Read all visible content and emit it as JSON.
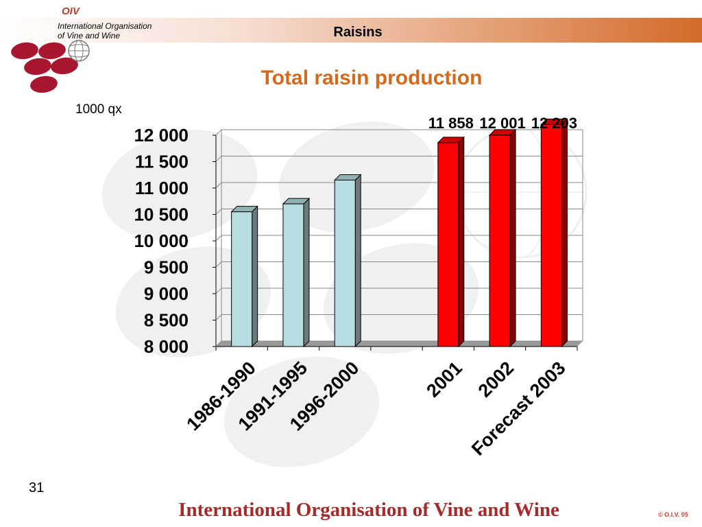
{
  "header": {
    "logo_text": "OIV",
    "org_line1": "International Organisation",
    "org_line2": "of  Vine  and  Wine",
    "title": "Raisins"
  },
  "slide_number": "31",
  "footer": {
    "org_name": "International Organisation of Vine and Wine",
    "copyright": "© O.I.V. 05"
  },
  "colors": {
    "accent": "#d2691e",
    "historic_bar": "#b6dde0",
    "recent_bar": "#ff0000",
    "footer_text": "#a52a2a"
  },
  "chart_data": {
    "type": "bar",
    "title": "Total raisin production",
    "unit": "1000 qx",
    "xlabel": "",
    "ylabel": "",
    "ylim": [
      8000,
      12000
    ],
    "yticks": [
      "12 000",
      "11 500",
      "11 000",
      "10 500",
      "10 000",
      "9 500",
      "9 000",
      "8 500",
      "8 000"
    ],
    "grid": true,
    "categories": [
      "1986-1990",
      "1991-1995",
      "1996-2000",
      "2001",
      "2002",
      "Forecast 2003"
    ],
    "values": [
      10550,
      10700,
      11150,
      11858,
      12001,
      12203
    ],
    "data_labels": [
      "",
      "",
      "",
      "11 858",
      "12 001",
      "12 203"
    ],
    "bar_colors": [
      "#b6dde0",
      "#b6dde0",
      "#b6dde0",
      "#ff0000",
      "#ff0000",
      "#ff0000"
    ]
  }
}
